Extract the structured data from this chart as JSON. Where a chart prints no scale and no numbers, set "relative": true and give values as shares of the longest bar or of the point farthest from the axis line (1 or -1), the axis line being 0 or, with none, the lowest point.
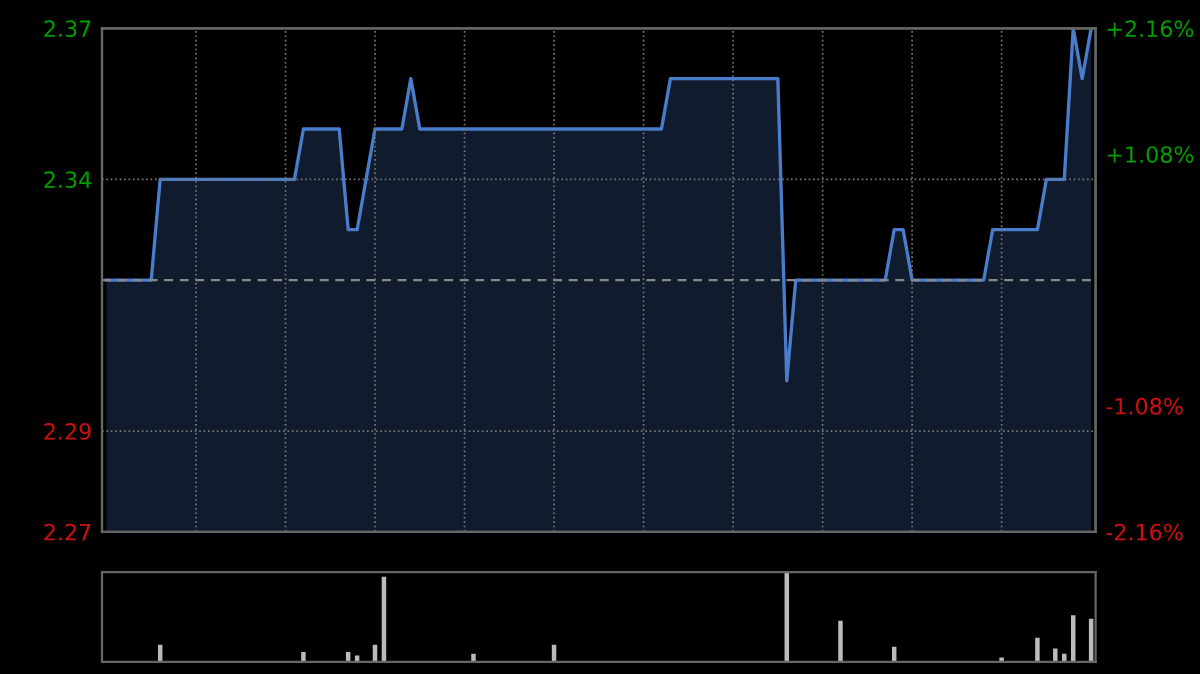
{
  "chart_data": [
    {
      "type": "area",
      "categories": [
        null,
        null,
        null,
        null,
        null,
        null,
        null,
        null,
        null,
        null,
        null,
        null,
        null,
        null,
        null,
        null,
        null,
        null,
        null,
        null,
        null,
        null,
        null,
        null,
        null,
        null,
        null,
        null,
        null,
        null,
        null,
        null,
        null,
        null,
        null,
        null,
        null,
        null,
        null,
        null,
        null,
        null,
        null,
        null,
        null,
        null,
        null,
        null,
        null,
        null,
        null,
        null,
        null,
        null,
        null,
        null,
        null,
        null,
        null,
        null,
        null,
        null,
        null,
        null,
        null,
        null,
        null,
        null,
        null,
        null,
        null,
        null,
        null,
        null,
        null,
        null,
        null,
        null,
        null,
        null,
        null,
        null,
        null,
        null,
        null,
        null,
        null,
        null,
        null,
        null,
        null,
        null,
        null,
        null,
        null,
        null,
        null,
        null,
        null,
        null,
        null,
        null,
        null,
        null,
        null,
        null,
        null,
        null,
        null,
        null,
        null
      ],
      "series": [
        {
          "color": "#4a7ccc",
          "values": [
            2.32,
            2.32,
            2.32,
            2.32,
            2.32,
            2.32,
            2.34,
            2.34,
            2.34,
            2.34,
            2.34,
            2.34,
            2.34,
            2.34,
            2.34,
            2.34,
            2.34,
            2.34,
            2.34,
            2.34,
            2.34,
            2.34,
            2.35,
            2.35,
            2.35,
            2.35,
            2.35,
            2.33,
            2.33,
            2.34,
            2.35,
            2.35,
            2.35,
            2.35,
            2.36,
            2.35,
            2.35,
            2.35,
            2.35,
            2.35,
            2.35,
            2.35,
            2.35,
            2.35,
            2.35,
            2.35,
            2.35,
            2.35,
            2.35,
            2.35,
            2.35,
            2.35,
            2.35,
            2.35,
            2.35,
            2.35,
            2.35,
            2.35,
            2.35,
            2.35,
            2.35,
            2.35,
            2.35,
            2.36,
            2.36,
            2.36,
            2.36,
            2.36,
            2.36,
            2.36,
            2.36,
            2.36,
            2.36,
            2.36,
            2.36,
            2.36,
            2.3,
            2.32,
            2.32,
            2.32,
            2.32,
            2.32,
            2.32,
            2.32,
            2.32,
            2.32,
            2.32,
            2.32,
            2.33,
            2.33,
            2.32,
            2.32,
            2.32,
            2.32,
            2.32,
            2.32,
            2.32,
            2.32,
            2.32,
            2.33,
            2.33,
            2.33,
            2.33,
            2.33,
            2.33,
            2.34,
            2.34,
            2.34,
            2.37,
            2.36,
            2.37
          ]
        }
      ],
      "ylim": [
        2.27,
        2.37
      ],
      "yticks": [
        2.27,
        2.29,
        2.34,
        2.37
      ],
      "y2lim": [
        -2.16,
        2.16
      ],
      "y2ticks": [
        {
          "value": -2.16,
          "label": "-2.16%"
        },
        {
          "value": -1.08,
          "label": "-1.08%"
        },
        {
          "value": 1.08,
          "label": "+1.08%"
        },
        {
          "value": 2.16,
          "label": "+2.16%"
        }
      ],
      "ref_lines": [
        {
          "axis": "y",
          "value": 2.32,
          "color": "#888888",
          "line_style": "dashed"
        }
      ],
      "grid": true
    },
    {
      "type": "bar",
      "relative": true,
      "categories": [
        null,
        null,
        null,
        null,
        null,
        null,
        null,
        null,
        null,
        null,
        null,
        null,
        null,
        null,
        null,
        null,
        null,
        null,
        null,
        null,
        null,
        null,
        null,
        null,
        null,
        null,
        null,
        null,
        null,
        null,
        null,
        null,
        null,
        null,
        null,
        null,
        null,
        null,
        null,
        null,
        null,
        null,
        null,
        null,
        null,
        null,
        null,
        null,
        null,
        null,
        null,
        null,
        null,
        null,
        null,
        null,
        null,
        null,
        null,
        null,
        null,
        null,
        null,
        null,
        null,
        null,
        null,
        null,
        null,
        null,
        null,
        null,
        null,
        null,
        null,
        null,
        null,
        null,
        null,
        null,
        null,
        null,
        null,
        null,
        null,
        null,
        null,
        null,
        null,
        null,
        null,
        null,
        null,
        null,
        null,
        null,
        null,
        null,
        null,
        null,
        null,
        null,
        null,
        null,
        null,
        null,
        null,
        null,
        null,
        null,
        null
      ],
      "series": [
        {
          "color": "#bbbbbb",
          "values": [
            null,
            null,
            null,
            null,
            null,
            null,
            0.19,
            null,
            null,
            null,
            null,
            null,
            null,
            null,
            null,
            null,
            null,
            null,
            null,
            null,
            null,
            null,
            0.11,
            null,
            null,
            null,
            null,
            0.11,
            0.07,
            null,
            0.19,
            0.95,
            null,
            null,
            null,
            null,
            null,
            null,
            null,
            null,
            null,
            0.09,
            null,
            null,
            null,
            null,
            null,
            null,
            null,
            null,
            0.19,
            null,
            null,
            null,
            null,
            null,
            null,
            null,
            null,
            null,
            null,
            null,
            null,
            null,
            null,
            null,
            null,
            null,
            null,
            null,
            null,
            null,
            null,
            null,
            null,
            null,
            1.0,
            null,
            null,
            null,
            null,
            null,
            0.46,
            null,
            null,
            null,
            null,
            null,
            0.17,
            null,
            null,
            null,
            null,
            null,
            null,
            null,
            null,
            null,
            null,
            null,
            0.05,
            null,
            null,
            null,
            0.27,
            null,
            0.15,
            0.09,
            0.52,
            null,
            0.48
          ]
        }
      ]
    }
  ]
}
